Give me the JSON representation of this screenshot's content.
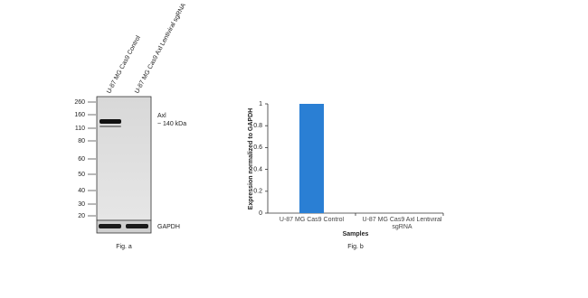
{
  "blot": {
    "lanes": [
      "U-87 MG Cas9 Control",
      "U-87 MG Cas9 Axl Lentiviral sgRNA"
    ],
    "markers": [
      260,
      160,
      110,
      80,
      60,
      50,
      40,
      30,
      20
    ],
    "target": "Axl",
    "target_size": "~ 140 kDa",
    "loading_control": "GAPDH",
    "caption": "Fig. a"
  },
  "chart_data": {
    "type": "bar",
    "caption": "Fig. b",
    "x_label": "Samples",
    "y_label": "Expression normalized to GAPDH",
    "categories": [
      "U-87 MG Cas9 Control",
      "U-87 MG Cas9 Axl Lentiviral sgRNA"
    ],
    "values": [
      1,
      0
    ],
    "color": "#2a7fd4",
    "ylim": [
      0,
      1
    ],
    "yticks": [
      0,
      0.2,
      0.4,
      0.6,
      0.8,
      1
    ]
  }
}
